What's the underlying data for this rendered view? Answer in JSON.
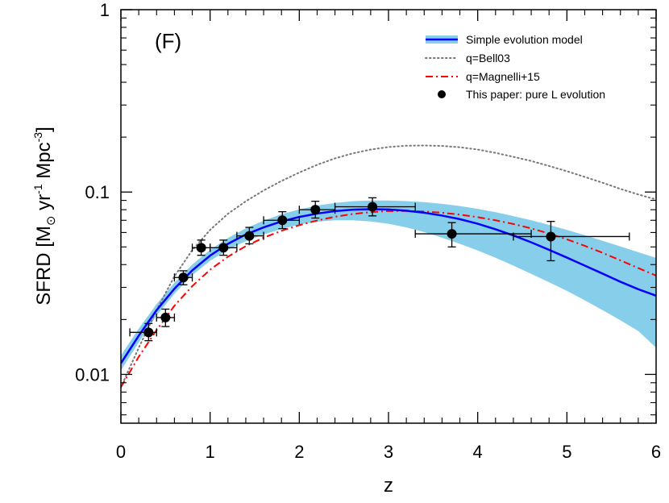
{
  "chart_data": {
    "type": "line",
    "panel_label": "(F)",
    "xlabel": "z",
    "ylabel": "SFRD [M",
    "ylabel_sub": "⊙",
    "ylabel_rest": " yr",
    "ylabel_sup1": "-1",
    "ylabel_mpc": " Mpc",
    "ylabel_sup2": "-3",
    "ylabel_close": "]",
    "xlim": [
      0,
      6
    ],
    "ylim": [
      0.0054,
      1.0
    ],
    "yscale": "log",
    "grid": false,
    "legend_placement": "top-right",
    "x_ticks": [
      {
        "value": 0,
        "label": "0"
      },
      {
        "value": 1,
        "label": "1"
      },
      {
        "value": 2,
        "label": "2"
      },
      {
        "value": 3,
        "label": "3"
      },
      {
        "value": 4,
        "label": "4"
      },
      {
        "value": 5,
        "label": "5"
      },
      {
        "value": 6,
        "label": "6"
      }
    ],
    "y_ticks": [
      {
        "value": 0.01,
        "label": "0.01"
      },
      {
        "value": 0.1,
        "label": "0.1"
      },
      {
        "value": 1,
        "label": "1"
      }
    ],
    "series": [
      {
        "name": "Simple evolution model",
        "kind": "band_line",
        "color": "#0000ff",
        "band_color": "#87ceeb",
        "x": [
          0,
          0.2,
          0.4,
          0.6,
          0.8,
          1.0,
          1.2,
          1.4,
          1.6,
          1.8,
          2.0,
          2.2,
          2.4,
          2.6,
          2.8,
          3.0,
          3.2,
          3.4,
          3.6,
          3.8,
          4.0,
          4.2,
          4.4,
          4.6,
          4.8,
          5.0,
          5.2,
          5.4,
          5.6,
          5.8,
          6.0
        ],
        "y": [
          0.0115,
          0.0163,
          0.0225,
          0.0295,
          0.0372,
          0.0448,
          0.052,
          0.0585,
          0.064,
          0.069,
          0.073,
          0.0762,
          0.0786,
          0.08,
          0.0805,
          0.0802,
          0.079,
          0.077,
          0.0743,
          0.071,
          0.067,
          0.0625,
          0.0578,
          0.053,
          0.0482,
          0.0437,
          0.0395,
          0.0357,
          0.0322,
          0.0293,
          0.027
        ],
        "y_low": [
          0.0105,
          0.015,
          0.021,
          0.0277,
          0.035,
          0.042,
          0.0483,
          0.0538,
          0.0585,
          0.0627,
          0.0663,
          0.0688,
          0.07,
          0.07,
          0.069,
          0.067,
          0.064,
          0.0603,
          0.0562,
          0.052,
          0.0478,
          0.0436,
          0.0395,
          0.0356,
          0.032,
          0.0287,
          0.0255,
          0.0225,
          0.0198,
          0.0173,
          0.014
        ],
        "y_high": [
          0.0127,
          0.0178,
          0.0243,
          0.0318,
          0.04,
          0.0482,
          0.056,
          0.0632,
          0.0697,
          0.0756,
          0.0803,
          0.0843,
          0.0872,
          0.089,
          0.0898,
          0.0898,
          0.0892,
          0.088,
          0.0862,
          0.0838,
          0.0808,
          0.0775,
          0.0738,
          0.07,
          0.066,
          0.062,
          0.058,
          0.054,
          0.0503,
          0.0468,
          0.0435
        ]
      },
      {
        "name": "q=Bell03",
        "kind": "line",
        "style": "dotted",
        "color": "#777777",
        "x": [
          0,
          0.2,
          0.4,
          0.6,
          0.8,
          1.0,
          1.2,
          1.4,
          1.6,
          1.8,
          2.0,
          2.2,
          2.4,
          2.6,
          2.8,
          3.0,
          3.2,
          3.4,
          3.6,
          3.8,
          4.0,
          4.2,
          4.4,
          4.6,
          4.8,
          5.0,
          5.2,
          5.4,
          5.6,
          5.8,
          6.0
        ],
        "y": [
          0.0085,
          0.014,
          0.0225,
          0.0345,
          0.048,
          0.062,
          0.076,
          0.089,
          0.102,
          0.115,
          0.128,
          0.141,
          0.153,
          0.163,
          0.171,
          0.1765,
          0.1795,
          0.18,
          0.179,
          0.176,
          0.171,
          0.164,
          0.156,
          0.148,
          0.139,
          0.13,
          0.121,
          0.1125,
          0.104,
          0.097,
          0.091
        ]
      },
      {
        "name": "q=Magnelli+15",
        "kind": "line",
        "style": "dashdot",
        "color": "#ff0000",
        "x": [
          0,
          0.2,
          0.4,
          0.6,
          0.8,
          1.0,
          1.2,
          1.4,
          1.6,
          1.8,
          2.0,
          2.2,
          2.4,
          2.6,
          2.8,
          3.0,
          3.2,
          3.4,
          3.6,
          3.8,
          4.0,
          4.2,
          4.4,
          4.6,
          4.8,
          5.0,
          5.2,
          5.4,
          5.6,
          5.8,
          6.0
        ],
        "y": [
          0.0085,
          0.0125,
          0.0175,
          0.0238,
          0.0305,
          0.0375,
          0.0442,
          0.0505,
          0.0562,
          0.0613,
          0.0658,
          0.0698,
          0.0732,
          0.0758,
          0.0776,
          0.0786,
          0.0788,
          0.0782,
          0.077,
          0.0752,
          0.0728,
          0.07,
          0.0668,
          0.0632,
          0.0592,
          0.055,
          0.0507,
          0.0464,
          0.0422,
          0.0383,
          0.0348
        ]
      },
      {
        "name": "This paper: pure L evolution",
        "kind": "points",
        "color": "#000000",
        "points": [
          {
            "x": 0.31,
            "y": 0.017,
            "xlo": 0.1,
            "xhi": 0.4,
            "ylo": 0.0153,
            "yhi": 0.019
          },
          {
            "x": 0.5,
            "y": 0.0205,
            "xlo": 0.4,
            "xhi": 0.6,
            "ylo": 0.0183,
            "yhi": 0.0228
          },
          {
            "x": 0.7,
            "y": 0.034,
            "xlo": 0.6,
            "xhi": 0.8,
            "ylo": 0.031,
            "yhi": 0.037
          },
          {
            "x": 0.9,
            "y": 0.0495,
            "xlo": 0.8,
            "xhi": 1.0,
            "ylo": 0.045,
            "yhi": 0.0545
          },
          {
            "x": 1.15,
            "y": 0.0495,
            "xlo": 1.0,
            "xhi": 1.3,
            "ylo": 0.045,
            "yhi": 0.0545
          },
          {
            "x": 1.44,
            "y": 0.0575,
            "xlo": 1.3,
            "xhi": 1.6,
            "ylo": 0.052,
            "yhi": 0.064
          },
          {
            "x": 1.81,
            "y": 0.07,
            "xlo": 1.6,
            "xhi": 2.0,
            "ylo": 0.063,
            "yhi": 0.078
          },
          {
            "x": 2.18,
            "y": 0.08,
            "xlo": 2.0,
            "xhi": 2.4,
            "ylo": 0.072,
            "yhi": 0.089
          },
          {
            "x": 2.82,
            "y": 0.083,
            "xlo": 2.4,
            "xhi": 3.3,
            "ylo": 0.074,
            "yhi": 0.093
          },
          {
            "x": 3.71,
            "y": 0.059,
            "xlo": 3.3,
            "xhi": 4.6,
            "ylo": 0.05,
            "yhi": 0.068
          },
          {
            "x": 4.82,
            "y": 0.057,
            "xlo": 4.4,
            "xhi": 5.7,
            "ylo": 0.042,
            "yhi": 0.069
          }
        ]
      }
    ]
  }
}
